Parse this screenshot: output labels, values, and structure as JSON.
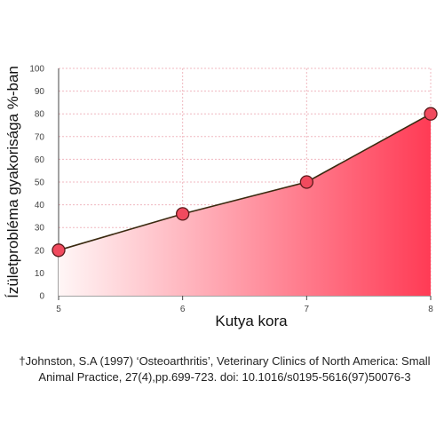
{
  "chart_data": {
    "type": "area",
    "title": "",
    "xlabel": "Kutya kora",
    "ylabel": "Ízületprobléma gyakorisága %-ban",
    "x": [
      5,
      6,
      7,
      8
    ],
    "y": [
      20,
      36,
      50,
      80
    ],
    "xlim": [
      5,
      8
    ],
    "ylim": [
      0,
      100
    ],
    "y_ticks": [
      0,
      10,
      20,
      30,
      40,
      50,
      60,
      70,
      80,
      90,
      100
    ],
    "x_ticks": [
      5,
      6,
      7,
      8
    ],
    "grid": true,
    "colors": {
      "fill_light": "#fff6f6",
      "fill_dark": "#ff3b55",
      "line": "#3a2a10",
      "marker_fill": "#f14a5e",
      "marker_stroke": "#5a1a1a",
      "grid": "#f0b8c0"
    }
  },
  "footnote": {
    "line1": "†Johnston, S.A (1997) ‘Osteoarthritis’, Veterinary Clinics of North America: Small",
    "line2": "Animal Practice, 27(4),pp.699-723. doi: 10.1016/s0195-5616(97)50076-3"
  }
}
